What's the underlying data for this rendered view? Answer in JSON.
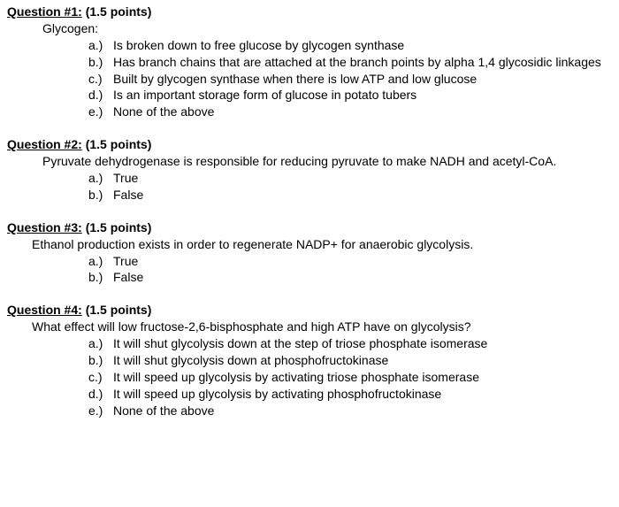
{
  "q1": {
    "header": "Question #1:",
    "points": "(1.5 points)",
    "stem": "Glycogen:",
    "options": [
      {
        "letter": "a.)",
        "text": "Is broken down to free glucose by glycogen synthase"
      },
      {
        "letter": "b.)",
        "text": "Has branch chains that are attached at the branch points by alpha 1,4 glycosidic linkages"
      },
      {
        "letter": "c.)",
        "text": "Built by glycogen synthase when there is low ATP and low glucose"
      },
      {
        "letter": "d.)",
        "text": "Is an important storage form of glucose in potato tubers"
      },
      {
        "letter": "e.)",
        "text": "None of the above"
      }
    ]
  },
  "q2": {
    "header": "Question #2:",
    "points": "(1.5 points)",
    "stem": "Pyruvate dehydrogenase is responsible for reducing pyruvate to make NADH and acetyl-CoA.",
    "options": [
      {
        "letter": "a.)",
        "text": "True"
      },
      {
        "letter": "b.)",
        "text": "False"
      }
    ]
  },
  "q3": {
    "header": "Question #3:",
    "points": "(1.5 points)",
    "stem": "Ethanol production exists in order to regenerate NADP+ for anaerobic glycolysis.",
    "options": [
      {
        "letter": "a.)",
        "text": "True"
      },
      {
        "letter": "b.)",
        "text": "False"
      }
    ]
  },
  "q4": {
    "header": "Question #4:",
    "points": "(1.5 points)",
    "stem": "What effect will low fructose-2,6-bisphosphate and high ATP have on glycolysis?",
    "options": [
      {
        "letter": "a.)",
        "text": "It will shut glycolysis down at the step of triose phosphate isomerase"
      },
      {
        "letter": "b.)",
        "text": "It will shut glycolysis down at phosphofructokinase"
      },
      {
        "letter": "c.)",
        "text": "It will speed up glycolysis by activating triose phosphate isomerase"
      },
      {
        "letter": "d.)",
        "text": "It will speed up glycolysis by activating phosphofructokinase"
      },
      {
        "letter": "e.)",
        "text": "None of the above"
      }
    ]
  },
  "colors": {
    "text": "#000000",
    "background": "#ffffff"
  },
  "typography": {
    "font_family": "Arial",
    "font_size_pt": 11,
    "header_weight": "bold",
    "body_weight": "normal"
  }
}
